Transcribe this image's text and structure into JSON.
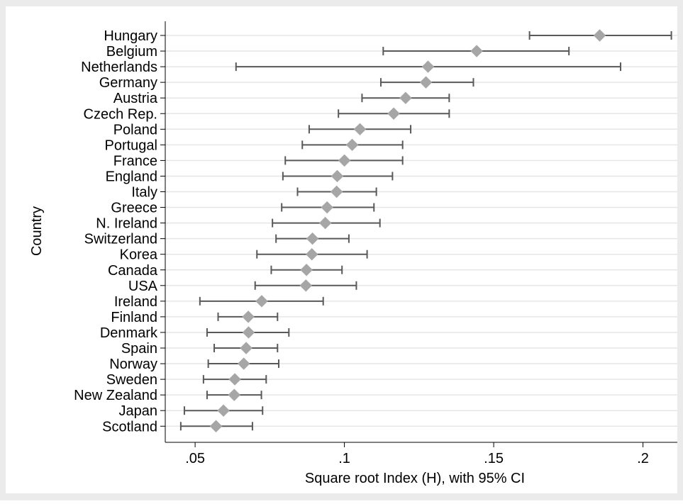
{
  "chart_data": {
    "type": "dot-errorbar",
    "xlabel": "Square root Index (H), with 95% CI",
    "ylabel": "Country",
    "xlim": [
      0.04,
      0.2115
    ],
    "xticks": [
      0.05,
      0.1,
      0.15,
      0.2
    ],
    "xtick_labels": [
      ".05",
      ".1",
      ".15",
      ".2"
    ],
    "grid": "horizontal",
    "legend": "none",
    "colors": {
      "background": "#ebebeb",
      "plot": "#ffffff",
      "grid": "#e6e6e6",
      "point": "#a6a6a6",
      "bar": "#595959"
    },
    "points": [
      {
        "country": "Hungary",
        "value": 0.1855,
        "low": 0.162,
        "high": 0.2095
      },
      {
        "country": "Belgium",
        "value": 0.1443,
        "low": 0.113,
        "high": 0.1752
      },
      {
        "country": "Netherlands",
        "value": 0.128,
        "low": 0.0637,
        "high": 0.1925
      },
      {
        "country": "Germany",
        "value": 0.1273,
        "low": 0.1122,
        "high": 0.1432
      },
      {
        "country": "Austria",
        "value": 0.1205,
        "low": 0.1059,
        "high": 0.1351
      },
      {
        "country": "Czech Rep.",
        "value": 0.1165,
        "low": 0.098,
        "high": 0.1351
      },
      {
        "country": "Poland",
        "value": 0.1052,
        "low": 0.0882,
        "high": 0.1222
      },
      {
        "country": "Portugal",
        "value": 0.1026,
        "low": 0.0859,
        "high": 0.1195
      },
      {
        "country": "France",
        "value": 0.1,
        "low": 0.0802,
        "high": 0.1195
      },
      {
        "country": "England",
        "value": 0.0976,
        "low": 0.0794,
        "high": 0.1161
      },
      {
        "country": "Italy",
        "value": 0.0974,
        "low": 0.0843,
        "high": 0.1107
      },
      {
        "country": "Greece",
        "value": 0.0942,
        "low": 0.079,
        "high": 0.1099
      },
      {
        "country": "N. Ireland",
        "value": 0.0936,
        "low": 0.0759,
        "high": 0.1119
      },
      {
        "country": "Switzerland",
        "value": 0.0893,
        "low": 0.0771,
        "high": 0.1015
      },
      {
        "country": "Korea",
        "value": 0.0891,
        "low": 0.0707,
        "high": 0.1076
      },
      {
        "country": "Canada",
        "value": 0.0873,
        "low": 0.0755,
        "high": 0.0992
      },
      {
        "country": "USA",
        "value": 0.0871,
        "low": 0.0701,
        "high": 0.104
      },
      {
        "country": "Ireland",
        "value": 0.0723,
        "low": 0.0516,
        "high": 0.0929
      },
      {
        "country": "Finland",
        "value": 0.0678,
        "low": 0.0577,
        "high": 0.0776
      },
      {
        "country": "Denmark",
        "value": 0.0679,
        "low": 0.054,
        "high": 0.0814
      },
      {
        "country": "Spain",
        "value": 0.0671,
        "low": 0.0564,
        "high": 0.0776
      },
      {
        "country": "Norway",
        "value": 0.0663,
        "low": 0.0544,
        "high": 0.078
      },
      {
        "country": "Sweden",
        "value": 0.0633,
        "low": 0.0528,
        "high": 0.0738
      },
      {
        "country": "New Zealand",
        "value": 0.0631,
        "low": 0.054,
        "high": 0.0722
      },
      {
        "country": "Japan",
        "value": 0.0595,
        "low": 0.0464,
        "high": 0.0726
      },
      {
        "country": "Scotland",
        "value": 0.057,
        "low": 0.0452,
        "high": 0.0692
      }
    ]
  }
}
